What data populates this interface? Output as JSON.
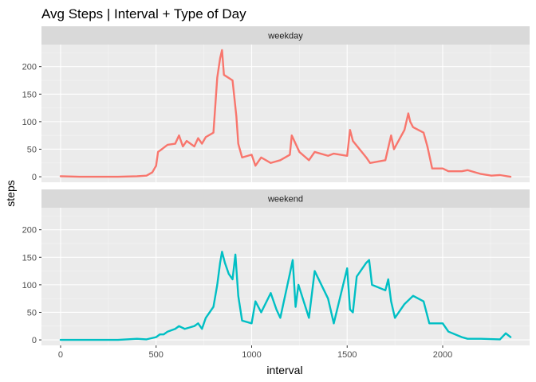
{
  "chart_data": {
    "type": "line",
    "title": "Avg Steps | Interval + Type of Day",
    "xlabel": "interval",
    "ylabel": "steps",
    "xlim": [
      -100,
      2455
    ],
    "ylim": [
      -10,
      240
    ],
    "xticks": [
      0,
      500,
      1000,
      1500,
      2000
    ],
    "yticks": [
      0,
      50,
      100,
      150,
      200
    ],
    "grid": true,
    "legend": "none",
    "facets": [
      {
        "label": "weekday",
        "color": "#F8766D",
        "x": [
          0,
          100,
          200,
          300,
          400,
          450,
          480,
          500,
          510,
          530,
          560,
          600,
          620,
          640,
          660,
          700,
          720,
          740,
          760,
          800,
          820,
          835,
          845,
          855,
          900,
          920,
          930,
          950,
          1000,
          1020,
          1050,
          1100,
          1150,
          1200,
          1210,
          1230,
          1250,
          1300,
          1330,
          1400,
          1430,
          1500,
          1515,
          1530,
          1600,
          1620,
          1700,
          1730,
          1745,
          1800,
          1820,
          1830,
          1845,
          1900,
          1920,
          1945,
          2000,
          2030,
          2100,
          2130,
          2200,
          2255,
          2300,
          2355
        ],
        "y": [
          1,
          0,
          0,
          0,
          1,
          2,
          8,
          20,
          45,
          50,
          58,
          60,
          75,
          55,
          65,
          55,
          70,
          60,
          72,
          80,
          180,
          215,
          230,
          185,
          175,
          110,
          60,
          35,
          40,
          20,
          35,
          25,
          30,
          40,
          75,
          60,
          45,
          30,
          45,
          38,
          42,
          38,
          85,
          65,
          35,
          25,
          30,
          75,
          50,
          85,
          115,
          100,
          90,
          80,
          55,
          15,
          15,
          10,
          10,
          12,
          5,
          2,
          3,
          0
        ]
      },
      {
        "label": "weekend",
        "color": "#00BFC4",
        "x": [
          0,
          100,
          200,
          300,
          400,
          450,
          500,
          520,
          540,
          560,
          600,
          620,
          650,
          700,
          720,
          740,
          760,
          800,
          820,
          835,
          845,
          860,
          880,
          900,
          915,
          930,
          950,
          1000,
          1020,
          1050,
          1100,
          1130,
          1150,
          1200,
          1215,
          1230,
          1245,
          1300,
          1330,
          1400,
          1430,
          1500,
          1515,
          1530,
          1550,
          1600,
          1615,
          1630,
          1700,
          1715,
          1730,
          1750,
          1800,
          1830,
          1845,
          1900,
          1930,
          2000,
          2030,
          2100,
          2130,
          2200,
          2300,
          2330,
          2355
        ],
        "y": [
          0,
          0,
          0,
          0,
          2,
          1,
          5,
          10,
          10,
          15,
          20,
          25,
          20,
          25,
          30,
          20,
          40,
          60,
          100,
          140,
          160,
          140,
          120,
          110,
          155,
          80,
          35,
          30,
          70,
          50,
          85,
          55,
          40,
          120,
          145,
          60,
          100,
          40,
          125,
          75,
          30,
          130,
          55,
          50,
          115,
          140,
          145,
          100,
          90,
          110,
          70,
          40,
          65,
          75,
          80,
          70,
          30,
          30,
          15,
          5,
          2,
          2,
          1,
          12,
          5
        ]
      }
    ]
  }
}
